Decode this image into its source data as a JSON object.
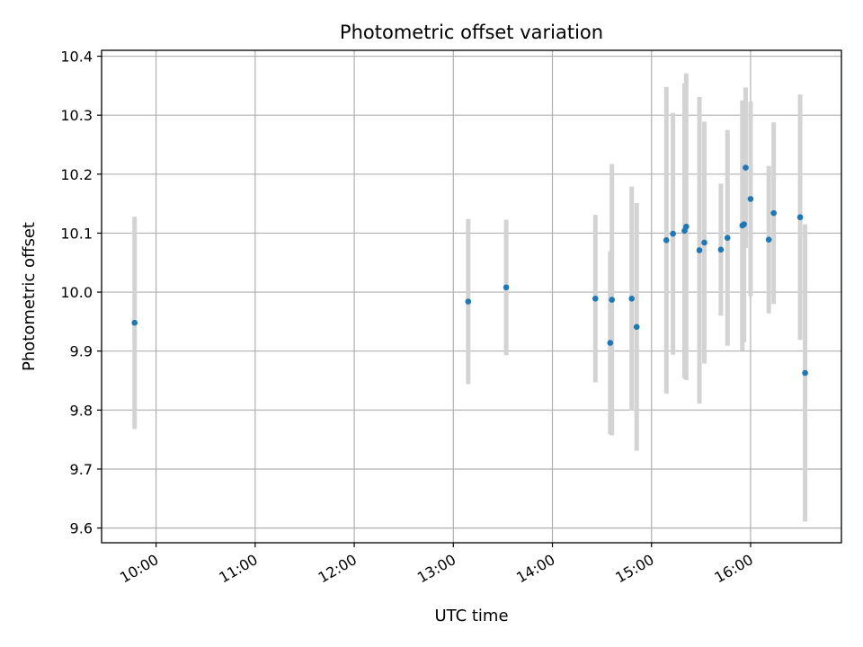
{
  "chart_data": {
    "type": "scatter",
    "title": "Photometric offset variation",
    "xlabel": "UTC time",
    "ylabel": "Photometric offset",
    "x_ticks": [
      "10:00",
      "11:00",
      "12:00",
      "13:00",
      "14:00",
      "15:00",
      "16:00"
    ],
    "y_ticks": [
      9.6,
      9.7,
      9.8,
      9.9,
      10.0,
      10.1,
      10.2,
      10.3,
      10.4
    ],
    "xlim": [
      "09:27",
      "16:55"
    ],
    "ylim": [
      9.575,
      10.41
    ],
    "grid": true,
    "marker_color": "#1f77b4",
    "errorbar_color": "#d3d3d3",
    "series": [
      {
        "points": [
          {
            "t": "09:47",
            "y": 9.948,
            "err": 0.18
          },
          {
            "t": "13:09",
            "y": 9.984,
            "err": 0.14
          },
          {
            "t": "13:32",
            "y": 10.008,
            "err": 0.115
          },
          {
            "t": "14:26",
            "y": 9.989,
            "err": 0.142
          },
          {
            "t": "14:35",
            "y": 9.914,
            "err": 0.155
          },
          {
            "t": "14:36",
            "y": 9.987,
            "err": 0.23
          },
          {
            "t": "14:48",
            "y": 9.989,
            "err": 0.19
          },
          {
            "t": "14:51",
            "y": 9.941,
            "err": 0.21
          },
          {
            "t": "15:09",
            "y": 10.088,
            "err": 0.26
          },
          {
            "t": "15:13",
            "y": 10.099,
            "err": 0.205
          },
          {
            "t": "15:20",
            "y": 10.104,
            "err": 0.25
          },
          {
            "t": "15:21",
            "y": 10.111,
            "err": 0.26
          },
          {
            "t": "15:29",
            "y": 10.071,
            "err": 0.26
          },
          {
            "t": "15:32",
            "y": 10.084,
            "err": 0.205
          },
          {
            "t": "15:42",
            "y": 10.072,
            "err": 0.112
          },
          {
            "t": "15:46",
            "y": 10.092,
            "err": 0.183
          },
          {
            "t": "15:55",
            "y": 10.113,
            "err": 0.212
          },
          {
            "t": "15:56",
            "y": 10.115,
            "err": 0.2
          },
          {
            "t": "15:57",
            "y": 10.211,
            "err": 0.136
          },
          {
            "t": "16:00",
            "y": 10.158,
            "err": 0.165
          },
          {
            "t": "16:11",
            "y": 10.089,
            "err": 0.125
          },
          {
            "t": "16:14",
            "y": 10.134,
            "err": 0.154
          },
          {
            "t": "16:30",
            "y": 10.127,
            "err": 0.208
          },
          {
            "t": "16:33",
            "y": 9.863,
            "err": 0.252
          }
        ]
      }
    ]
  }
}
